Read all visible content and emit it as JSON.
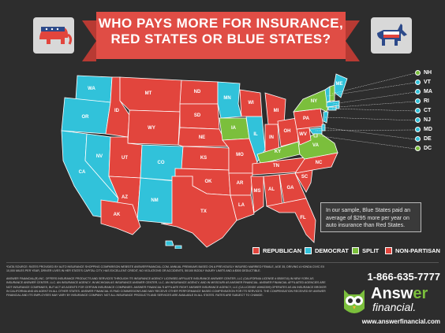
{
  "header": {
    "title_line1": "WHO PAYS MORE FOR INSURANCE,",
    "title_line2": "RED STATES OR BLUE STATES?",
    "republican_icon": "elephant-icon",
    "democrat_icon": "donkey-icon"
  },
  "colors": {
    "republican": "#e2453d",
    "democrat": "#31c2da",
    "split": "#7bbf3c",
    "non_partisan": "#e2453d",
    "background": "#2d2d2d"
  },
  "map": {
    "states": [
      {
        "abbr": "WA",
        "party": "democrat"
      },
      {
        "abbr": "OR",
        "party": "democrat"
      },
      {
        "abbr": "CA",
        "party": "democrat"
      },
      {
        "abbr": "NV",
        "party": "democrat"
      },
      {
        "abbr": "ID",
        "party": "republican"
      },
      {
        "abbr": "MT",
        "party": "republican"
      },
      {
        "abbr": "WY",
        "party": "republican"
      },
      {
        "abbr": "UT",
        "party": "republican"
      },
      {
        "abbr": "CO",
        "party": "democrat"
      },
      {
        "abbr": "AZ",
        "party": "republican"
      },
      {
        "abbr": "NM",
        "party": "democrat"
      },
      {
        "abbr": "ND",
        "party": "republican"
      },
      {
        "abbr": "SD",
        "party": "republican"
      },
      {
        "abbr": "NE",
        "party": "non_partisan"
      },
      {
        "abbr": "KS",
        "party": "republican"
      },
      {
        "abbr": "OK",
        "party": "republican"
      },
      {
        "abbr": "TX",
        "party": "republican"
      },
      {
        "abbr": "MN",
        "party": "democrat"
      },
      {
        "abbr": "IA",
        "party": "split"
      },
      {
        "abbr": "MO",
        "party": "republican"
      },
      {
        "abbr": "AR",
        "party": "republican"
      },
      {
        "abbr": "LA",
        "party": "republican"
      },
      {
        "abbr": "WI",
        "party": "republican"
      },
      {
        "abbr": "IL",
        "party": "democrat"
      },
      {
        "abbr": "MI",
        "party": "republican"
      },
      {
        "abbr": "IN",
        "party": "republican"
      },
      {
        "abbr": "OH",
        "party": "republican"
      },
      {
        "abbr": "KY",
        "party": "split"
      },
      {
        "abbr": "TN",
        "party": "republican"
      },
      {
        "abbr": "MS",
        "party": "republican"
      },
      {
        "abbr": "AL",
        "party": "republican"
      },
      {
        "abbr": "GA",
        "party": "republican"
      },
      {
        "abbr": "FL",
        "party": "republican"
      },
      {
        "abbr": "SC",
        "party": "republican"
      },
      {
        "abbr": "NC",
        "party": "republican"
      },
      {
        "abbr": "VA",
        "party": "split"
      },
      {
        "abbr": "WV",
        "party": "republican"
      },
      {
        "abbr": "PA",
        "party": "republican"
      },
      {
        "abbr": "NY",
        "party": "split"
      },
      {
        "abbr": "ME",
        "party": "democrat"
      },
      {
        "abbr": "AK",
        "party": "republican"
      },
      {
        "abbr": "HI",
        "party": "democrat"
      }
    ]
  },
  "northeast": {
    "items": [
      {
        "abbr": "NH",
        "party": "split"
      },
      {
        "abbr": "VT",
        "party": "democrat"
      },
      {
        "abbr": "MA",
        "party": "democrat"
      },
      {
        "abbr": "RI",
        "party": "democrat"
      },
      {
        "abbr": "CT",
        "party": "democrat"
      },
      {
        "abbr": "NJ",
        "party": "democrat"
      },
      {
        "abbr": "MD",
        "party": "democrat"
      },
      {
        "abbr": "DE",
        "party": "democrat"
      },
      {
        "abbr": "DC",
        "party": "split"
      }
    ]
  },
  "callout": {
    "text": "In our sample, Blue States paid an average of $295 more per year on auto insurance than Red States."
  },
  "legend": {
    "republican": "REPUBLICAN",
    "democrat": "DEMOCRAT",
    "split": "SPLIT",
    "non_partisan": "NON-PARTISAN"
  },
  "footer": {
    "data_source": "*DATA SOURCE: RATES PROVIDED BY AUTO INSURANCE SHOPPING COMPARISON WEBSITE ANSWERFINANCIAL.COM. ANNUAL PREMIUMS BASED ON A PREVIOUSLY INSURED MARRIED FEMALE, AGE 35, DRIVING A HONDA CIVIC EX 10,000 MILES PER YEAR, DRIVER LIVES IN HER STATE'S CAPITAL CITY, HAS EXCELLENT CREDIT, NO VIOLATIONS OR ACCIDENTS, 50/100 BODILY INJURY LIMITS AND A $500 DEDUCTIBLE.",
    "disclaimer": "ANSWER FINANCIAL(R) INC. OFFERS INSURANCE PRODUCTS AND SERVICES THROUGH ITS INSURANCE AGENCY LICENSED AFFILIATE INSURANCE ANSWER CENTER, LLC (CALIFORNIA LICENSE # 0B59716) IN NEW YORK AS INSURANCE ANSWER CENTER, LLC. AN INSURANCE AGENCY, IN MICHIGAN AS INSURANCE ANSWER CENTER, LLC. AN INSURANCE AGENCY, AND IN MISSOURI AS ANSWER FINANCIAL. ANSWER FINANCIAL AFFILIATED AGENCIES ARE NOT INSURANCE COMPANIES, BUT ACT AS AGENTS FOR CERTAIN INSURANCE COMPANIES. ANSWER FINANCIAL'S AFFILIATE RIGHT ANSWER INSURANCE AGENCY, LLC (CA LICENSE #0H62399) OPERATES AS AN INSURANCE BROKER IN CALIFORNIA AND AN AGENT IN ALL OTHER STATES. ANSWER FINANCIAL IS PAID COMMISSIONS AND MAY RECEIVE OTHER PERFORMANCE BASED COMPENSATION FOR ITS SERVICES. THE COMPENSATION RECEIVED BY ANSWER FINANCIAL AND ITS EMPLOYEES MAY VARY BY INSURANCE COMPANY. NOT ALL INSURANCE PRODUCTS AND SERVICES ARE AVAILABLE IN ALL STATES. RATES ARE SUBJECT TO CHANGE.",
    "phone": "1-866-635-7777",
    "brand_part1": "Answ",
    "brand_part2": "er",
    "brand_line2": "financial.",
    "website": "www.answerfinancial.com"
  }
}
